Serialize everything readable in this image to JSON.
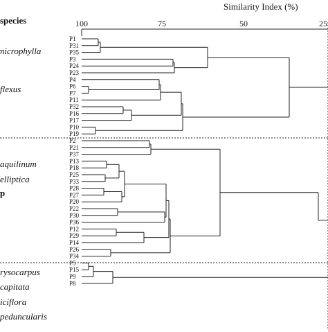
{
  "header": {
    "column_title": "species",
    "axis_title": "Similarity Index (%)"
  },
  "axis": {
    "ticks": [
      "100",
      "75",
      "50",
      "25"
    ],
    "min": 25,
    "max": 100
  },
  "species_labels": [
    "microphylla",
    "flexus",
    "aquilinum",
    "elliptica",
    "rysocarpus",
    "capitata",
    "iciflora",
    "peduncularis"
  ],
  "group_marker": "p",
  "leaves": [
    "P1",
    "P31",
    "P35",
    "P3",
    "P24",
    "P23",
    "P4",
    "P6",
    "P7",
    "P11",
    "P32",
    "P16",
    "P17",
    "P10",
    "P19",
    "P2",
    "P21",
    "P37",
    "P13",
    "P18",
    "P25",
    "P33",
    "P28",
    "P27",
    "P20",
    "P22",
    "P30",
    "P36",
    "P12",
    "P29",
    "P14",
    "P26",
    "P34",
    "P5",
    "P15",
    "P9",
    "P8"
  ],
  "colors": {
    "lines": "#222222",
    "background": "#ffffff"
  }
}
